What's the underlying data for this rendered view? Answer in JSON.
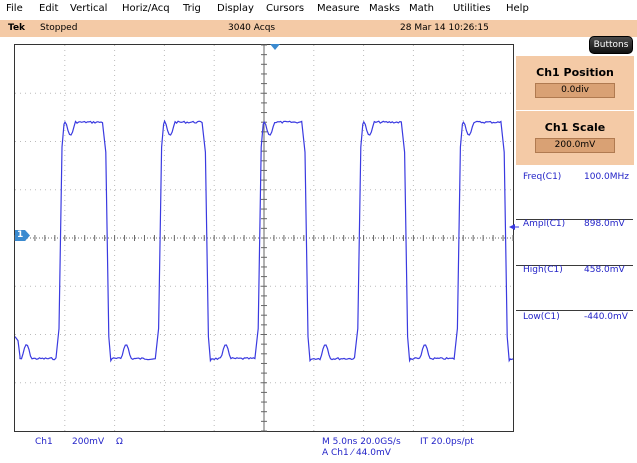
{
  "menubar": {
    "items": [
      {
        "label": "File",
        "icon": "file-menu"
      },
      {
        "label": "Edit"
      },
      {
        "label": "Vertical"
      },
      {
        "label": "Horiz/Acq"
      },
      {
        "label": "Trig"
      },
      {
        "label": "Display"
      },
      {
        "label": "Cursors"
      },
      {
        "label": "Measure"
      },
      {
        "label": "Masks"
      },
      {
        "label": "Math"
      },
      {
        "label": "Utilities"
      },
      {
        "label": "Help"
      }
    ]
  },
  "status": {
    "brand": "Tek",
    "state": "Stopped",
    "acqs": "3040 Acqs",
    "datetime": "28 Mar 14 10:26:15"
  },
  "buttons_label": "Buttons",
  "side": {
    "ch1_position": {
      "title": "Ch1 Position",
      "value": "0.0div"
    },
    "ch1_scale": {
      "title": "Ch1 Scale",
      "value": "200.0mV"
    },
    "measurements": [
      {
        "name": "Freq(C1)",
        "value": "100.0MHz"
      },
      {
        "name": "Ampl(C1)",
        "value": "898.0mV"
      },
      {
        "name": "High(C1)",
        "value": "458.0mV"
      },
      {
        "name": "Low(C1)",
        "value": "-440.0mV"
      }
    ]
  },
  "channel_marker": "1",
  "bottom": {
    "channel": "Ch1",
    "scale": "200mV",
    "impedance": "Ω",
    "timebase": "M 5.0ns 20.0GS/s",
    "interp": "IT 20.0ps/pt",
    "trigger": "A  Ch1  ⁄  44.0mV"
  },
  "colors": {
    "waveform": "#3a3ae0",
    "accent_panel": "#f4caa6",
    "value_box": "#d9a174",
    "readout_text": "#2424c8",
    "marker": "#3a8ad0"
  }
}
